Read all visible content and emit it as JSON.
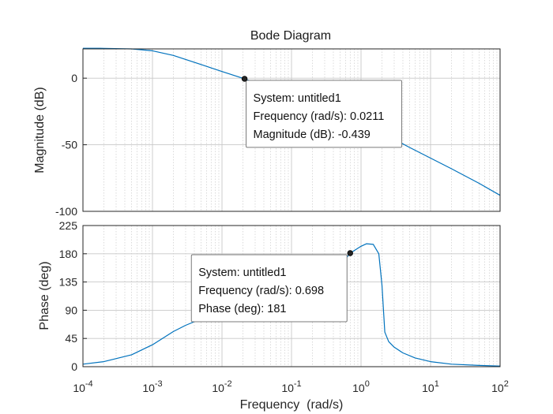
{
  "chart_data": {
    "type": "line",
    "title": "Bode Diagram",
    "xlabel": "Frequency  (rad/s)",
    "xscale": "log",
    "xlim": [
      0.0001,
      100
    ],
    "x_ticks": [
      {
        "base": "10",
        "exp": "-4"
      },
      {
        "base": "10",
        "exp": "-3"
      },
      {
        "base": "10",
        "exp": "-2"
      },
      {
        "base": "10",
        "exp": "-1"
      },
      {
        "base": "10",
        "exp": "0"
      },
      {
        "base": "10",
        "exp": "1"
      },
      {
        "base": "10",
        "exp": "2"
      }
    ],
    "grid": true,
    "line_color": "#0072bd",
    "panels": [
      {
        "name": "magnitude",
        "ylabel": "Magnitude (dB)",
        "ylim": [
          -100,
          22
        ],
        "yticks": [
          0,
          -50,
          -100
        ],
        "ytick_labels": [
          "0",
          "-50",
          "-100"
        ],
        "series": [
          {
            "x": [
              0.0001,
              0.0002,
              0.0005,
              0.001,
              0.002,
              0.005,
              0.01,
              0.0211,
              0.05,
              0.1,
              0.2,
              0.5,
              1,
              2,
              5,
              10,
              20,
              50,
              100
            ],
            "values": [
              22.5,
              22.4,
              22.0,
              20.6,
              17.1,
              10.3,
              5.0,
              -0.439,
              -7.5,
              -13.5,
              -19.5,
              -27.5,
              -33.5,
              -41.0,
              -52.0,
              -60.0,
              -68.0,
              -79.0,
              -88.0
            ]
          }
        ],
        "datatip": {
          "x": 0.0211,
          "y": -0.439,
          "lines": [
            "System: untitled1",
            "Frequency (rad/s): 0.0211",
            "Magnitude (dB): -0.439"
          ]
        }
      },
      {
        "name": "phase",
        "ylabel": "Phase (deg)",
        "ylim": [
          0,
          225
        ],
        "yticks": [
          0,
          45,
          90,
          135,
          180,
          225
        ],
        "ytick_labels": [
          "0",
          "45",
          "90",
          "135",
          "180",
          "225"
        ],
        "series": [
          {
            "x": [
              0.0001,
              0.0002,
              0.0005,
              0.001,
              0.002,
              0.003,
              0.005,
              0.01,
              0.02,
              0.05,
              0.1,
              0.2,
              0.4,
              0.698,
              1.0,
              1.2,
              1.5,
              1.8,
              2.0,
              2.2,
              2.5,
              3.0,
              4.0,
              6.0,
              10,
              20,
              50,
              100
            ],
            "values": [
              4,
              8,
              19,
              35,
              56,
              66,
              76,
              84,
              87,
              90,
              99,
              118,
              148,
              181,
              192,
              196,
              195,
              180,
              130,
              55,
              40,
              31,
              22,
              14,
              8,
              4,
              2,
              1
            ]
          }
        ],
        "datatip": {
          "x": 0.698,
          "y": 181,
          "lines": [
            "System: untitled1",
            "Frequency (rad/s): 0.698",
            "Phase (deg): 181"
          ]
        }
      }
    ]
  }
}
